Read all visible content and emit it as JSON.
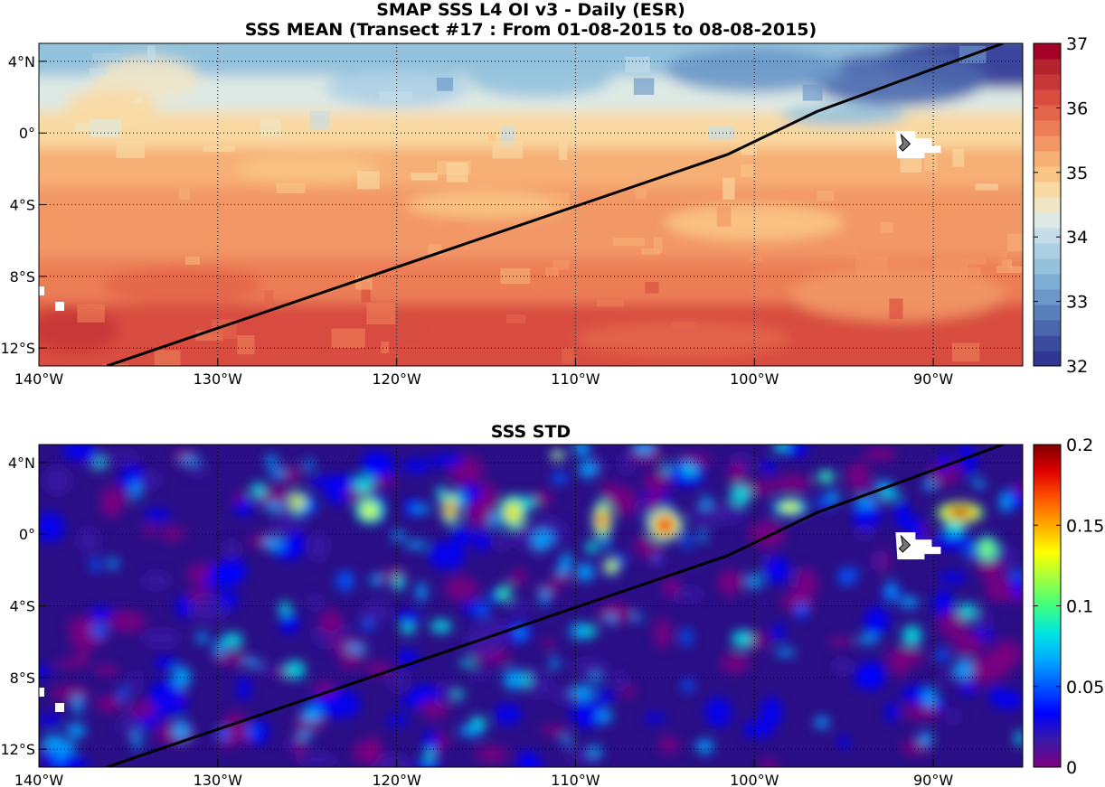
{
  "figure": {
    "title_line1": "SMAP SSS L4 OI v3 - Daily (ESR)",
    "title_line2": "SSS MEAN (Transect #17 : From 01-08-2015 to 08-08-2015)"
  },
  "map_extent": {
    "lon_min": -140,
    "lon_max": -85,
    "lat_min": -13,
    "lat_max": 5
  },
  "x_ticks": [
    {
      "lon": -140,
      "label": "140°W"
    },
    {
      "lon": -130,
      "label": "130°W"
    },
    {
      "lon": -120,
      "label": "120°W"
    },
    {
      "lon": -110,
      "label": "110°W"
    },
    {
      "lon": -100,
      "label": "100°W"
    },
    {
      "lon": -90,
      "label": "90°W"
    }
  ],
  "y_ticks": [
    {
      "lat": 4,
      "label": "4°N"
    },
    {
      "lat": 0,
      "label": "0°"
    },
    {
      "lat": -4,
      "label": "4°S"
    },
    {
      "lat": -8,
      "label": "8°S"
    },
    {
      "lat": -12,
      "label": "12°S"
    }
  ],
  "transect": {
    "points": [
      [
        -136.2,
        -13
      ],
      [
        -101.5,
        -1.2
      ],
      [
        -96.5,
        1.2
      ],
      [
        -86.1,
        5
      ]
    ],
    "color": "#000000"
  },
  "marker_location": {
    "lon": -91.5,
    "lat": -0.5
  },
  "mean_panel": {
    "title": "SSS MEAN",
    "colorbar": {
      "min": 32,
      "max": 37,
      "ticks": [
        {
          "value": 32,
          "label": "32"
        },
        {
          "value": 33,
          "label": "33"
        },
        {
          "value": 34,
          "label": "34"
        },
        {
          "value": 35,
          "label": "35"
        },
        {
          "value": 36,
          "label": "36"
        },
        {
          "value": 37,
          "label": "37"
        }
      ],
      "colors": [
        "#313695",
        "#3b4c9f",
        "#4a67ad",
        "#5a80bb",
        "#6b98c8",
        "#7eadd3",
        "#94c2dd",
        "#adcfe4",
        "#c4dde9",
        "#dde9e4",
        "#f0e6c6",
        "#f9d9a2",
        "#f9c585",
        "#f6af75",
        "#f29766",
        "#ec7e57",
        "#e3654b",
        "#d84d3f",
        "#c83737",
        "#b5232f",
        "#a50026"
      ]
    }
  },
  "std_panel": {
    "title": "SSS STD",
    "colorbar": {
      "min": 0,
      "max": 0.2,
      "ticks": [
        {
          "value": 0,
          "label": "0"
        },
        {
          "value": 0.05,
          "label": "0.05"
        },
        {
          "value": 0.1,
          "label": "0.1"
        },
        {
          "value": 0.15,
          "label": "0.15"
        },
        {
          "value": 0.2,
          "label": "0.2"
        }
      ],
      "colors": [
        "#800080",
        "#3a1aa6",
        "#0000ff",
        "#0055ff",
        "#00aaff",
        "#00e5e0",
        "#40ff80",
        "#a0ff40",
        "#ffff00",
        "#ffaa00",
        "#ff5500",
        "#e00000",
        "#800000"
      ]
    }
  }
}
